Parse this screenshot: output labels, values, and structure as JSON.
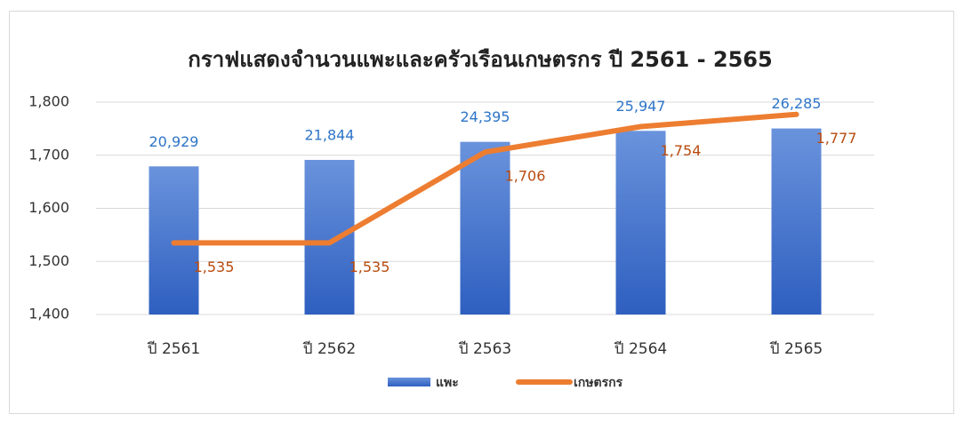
{
  "chart_data": {
    "type": "combo",
    "title": "กราฟแสดงจำนวนแพะและครัวเรือนเกษตรกร ปี 2561 - 2565",
    "categories": [
      "ปี 2561",
      "ปี 2562",
      "ปี 2563",
      "ปี 2564",
      "ปี 2565"
    ],
    "series": [
      {
        "name": "แพะ",
        "type": "bar",
        "axis": "y2",
        "color": "#4472c4",
        "values": [
          20929,
          21844,
          24395,
          25947,
          26285
        ],
        "value_labels": [
          "20,929",
          "21,844",
          "24,395",
          "25,947",
          "26,285"
        ]
      },
      {
        "name": "เกษตรกร",
        "type": "line",
        "color": "#ed7d31",
        "values": [
          1535,
          1535,
          1706,
          1754,
          1777
        ],
        "value_labels": [
          "1,535",
          "1,535",
          "1,706",
          "1,754",
          "1,777"
        ]
      }
    ],
    "ylim": [
      1400,
      1800
    ],
    "yticks": [
      {
        "value": 1400,
        "label": "1,400"
      },
      {
        "value": 1500,
        "label": "1,500"
      },
      {
        "value": 1600,
        "label": "1,600"
      },
      {
        "value": 1700,
        "label": "1,700"
      },
      {
        "value": 1800,
        "label": "1,800"
      }
    ],
    "y2lim": [
      0,
      30000
    ],
    "grid": true,
    "legend": "bottom"
  }
}
